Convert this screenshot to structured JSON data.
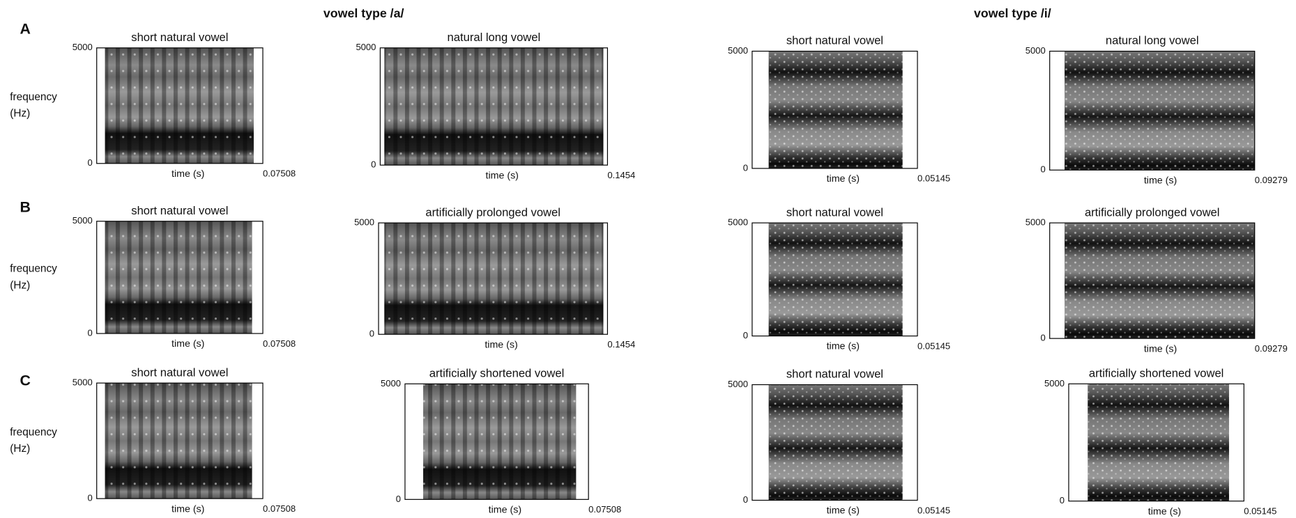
{
  "headers": [
    "vowel type /a/",
    "vowel type /i/"
  ],
  "y_label": [
    "frequency",
    "(Hz)"
  ],
  "rows": [
    {
      "label": "A",
      "panels": [
        {
          "title": "short natural vowel",
          "y_max": "5000",
          "y_min": "0",
          "x_label": "time (s)",
          "x_max": "0.07508"
        },
        {
          "title": "natural long vowel",
          "y_max": "5000",
          "y_min": "0",
          "x_label": "time (s)",
          "x_max": "0.1454"
        },
        {
          "title": "short natural vowel",
          "y_max": "5000",
          "y_min": "0",
          "x_label": "time (s)",
          "x_max": "0.05145"
        },
        {
          "title": "natural long vowel",
          "y_max": "5000",
          "y_min": "0",
          "x_label": "time (s)",
          "x_max": "0.09279"
        }
      ]
    },
    {
      "label": "B",
      "panels": [
        {
          "title": "short natural vowel",
          "y_max": "5000",
          "y_min": "0",
          "x_label": "time (s)",
          "x_max": "0.07508"
        },
        {
          "title": "artificially prolonged vowel",
          "y_max": "5000",
          "y_min": "0",
          "x_label": "time (s)",
          "x_max": "0.1454"
        },
        {
          "title": "short natural vowel",
          "y_max": "5000",
          "y_min": "0",
          "x_label": "time (s)",
          "x_max": "0.05145"
        },
        {
          "title": "artificially prolonged vowel",
          "y_max": "5000",
          "y_min": "0",
          "x_label": "time (s)",
          "x_max": "0.09279"
        }
      ]
    },
    {
      "label": "C",
      "panels": [
        {
          "title": "short natural vowel",
          "y_max": "5000",
          "y_min": "0",
          "x_label": "time (s)",
          "x_max": "0.07508"
        },
        {
          "title": "artificially shortened vowel",
          "y_max": "5000",
          "y_min": "0",
          "x_label": "time (s)",
          "x_max": "0.07508"
        },
        {
          "title": "short natural vowel",
          "y_max": "5000",
          "y_min": "0",
          "x_label": "time (s)",
          "x_max": "0.05145"
        },
        {
          "title": "artificially shortened vowel",
          "y_max": "5000",
          "y_min": "0",
          "x_label": "time (s)",
          "x_max": "0.05145"
        }
      ]
    }
  ]
}
